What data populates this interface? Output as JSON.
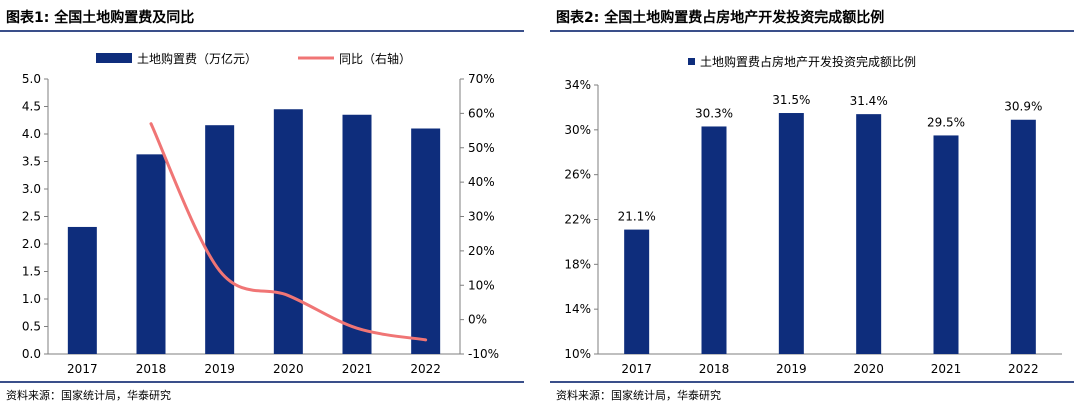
{
  "colors": {
    "bar": "#0e2d7c",
    "line": "#f07575",
    "rule": "#3a4f8a"
  },
  "chart_data": [
    {
      "type": "bar",
      "title": "图表1:  全国土地购置费及同比",
      "source": "资料来源：国家统计局，华泰研究",
      "categories": [
        "2017",
        "2018",
        "2019",
        "2020",
        "2021",
        "2022"
      ],
      "series": [
        {
          "name": "土地购置费（万亿元）",
          "type": "bar",
          "axis": "left",
          "values": [
            2.31,
            3.63,
            4.16,
            4.45,
            4.35,
            4.1
          ]
        },
        {
          "name": "同比（右轴）",
          "type": "line",
          "axis": "right",
          "values": [
            null,
            57.0,
            14.2,
            7.0,
            -2.5,
            -5.9
          ]
        }
      ],
      "y_left": {
        "ticks": [
          "0.0",
          "0.5",
          "1.0",
          "1.5",
          "2.0",
          "2.5",
          "3.0",
          "3.5",
          "4.0",
          "4.5",
          "5.0"
        ],
        "range": [
          0,
          5
        ]
      },
      "y_right": {
        "ticks": [
          "-10%",
          "0%",
          "10%",
          "20%",
          "30%",
          "40%",
          "50%",
          "60%",
          "70%"
        ],
        "range": [
          -10,
          70
        ]
      },
      "grid": false,
      "legend": "top"
    },
    {
      "type": "bar",
      "title": "图表2:  全国土地购置费占房地产开发投资完成额比例",
      "source": "资料来源：国家统计局，华泰研究",
      "categories": [
        "2017",
        "2018",
        "2019",
        "2020",
        "2021",
        "2022"
      ],
      "series": [
        {
          "name": "土地购置费占房地产开发投资完成额比例",
          "values": [
            21.1,
            30.3,
            31.5,
            31.4,
            29.5,
            30.9
          ],
          "labels": [
            "21.1%",
            "30.3%",
            "31.5%",
            "31.4%",
            "29.5%",
            "30.9%"
          ]
        }
      ],
      "y": {
        "ticks": [
          "10%",
          "14%",
          "18%",
          "22%",
          "26%",
          "30%",
          "34%"
        ],
        "range": [
          10,
          34
        ]
      },
      "grid": false,
      "legend": "top"
    }
  ]
}
